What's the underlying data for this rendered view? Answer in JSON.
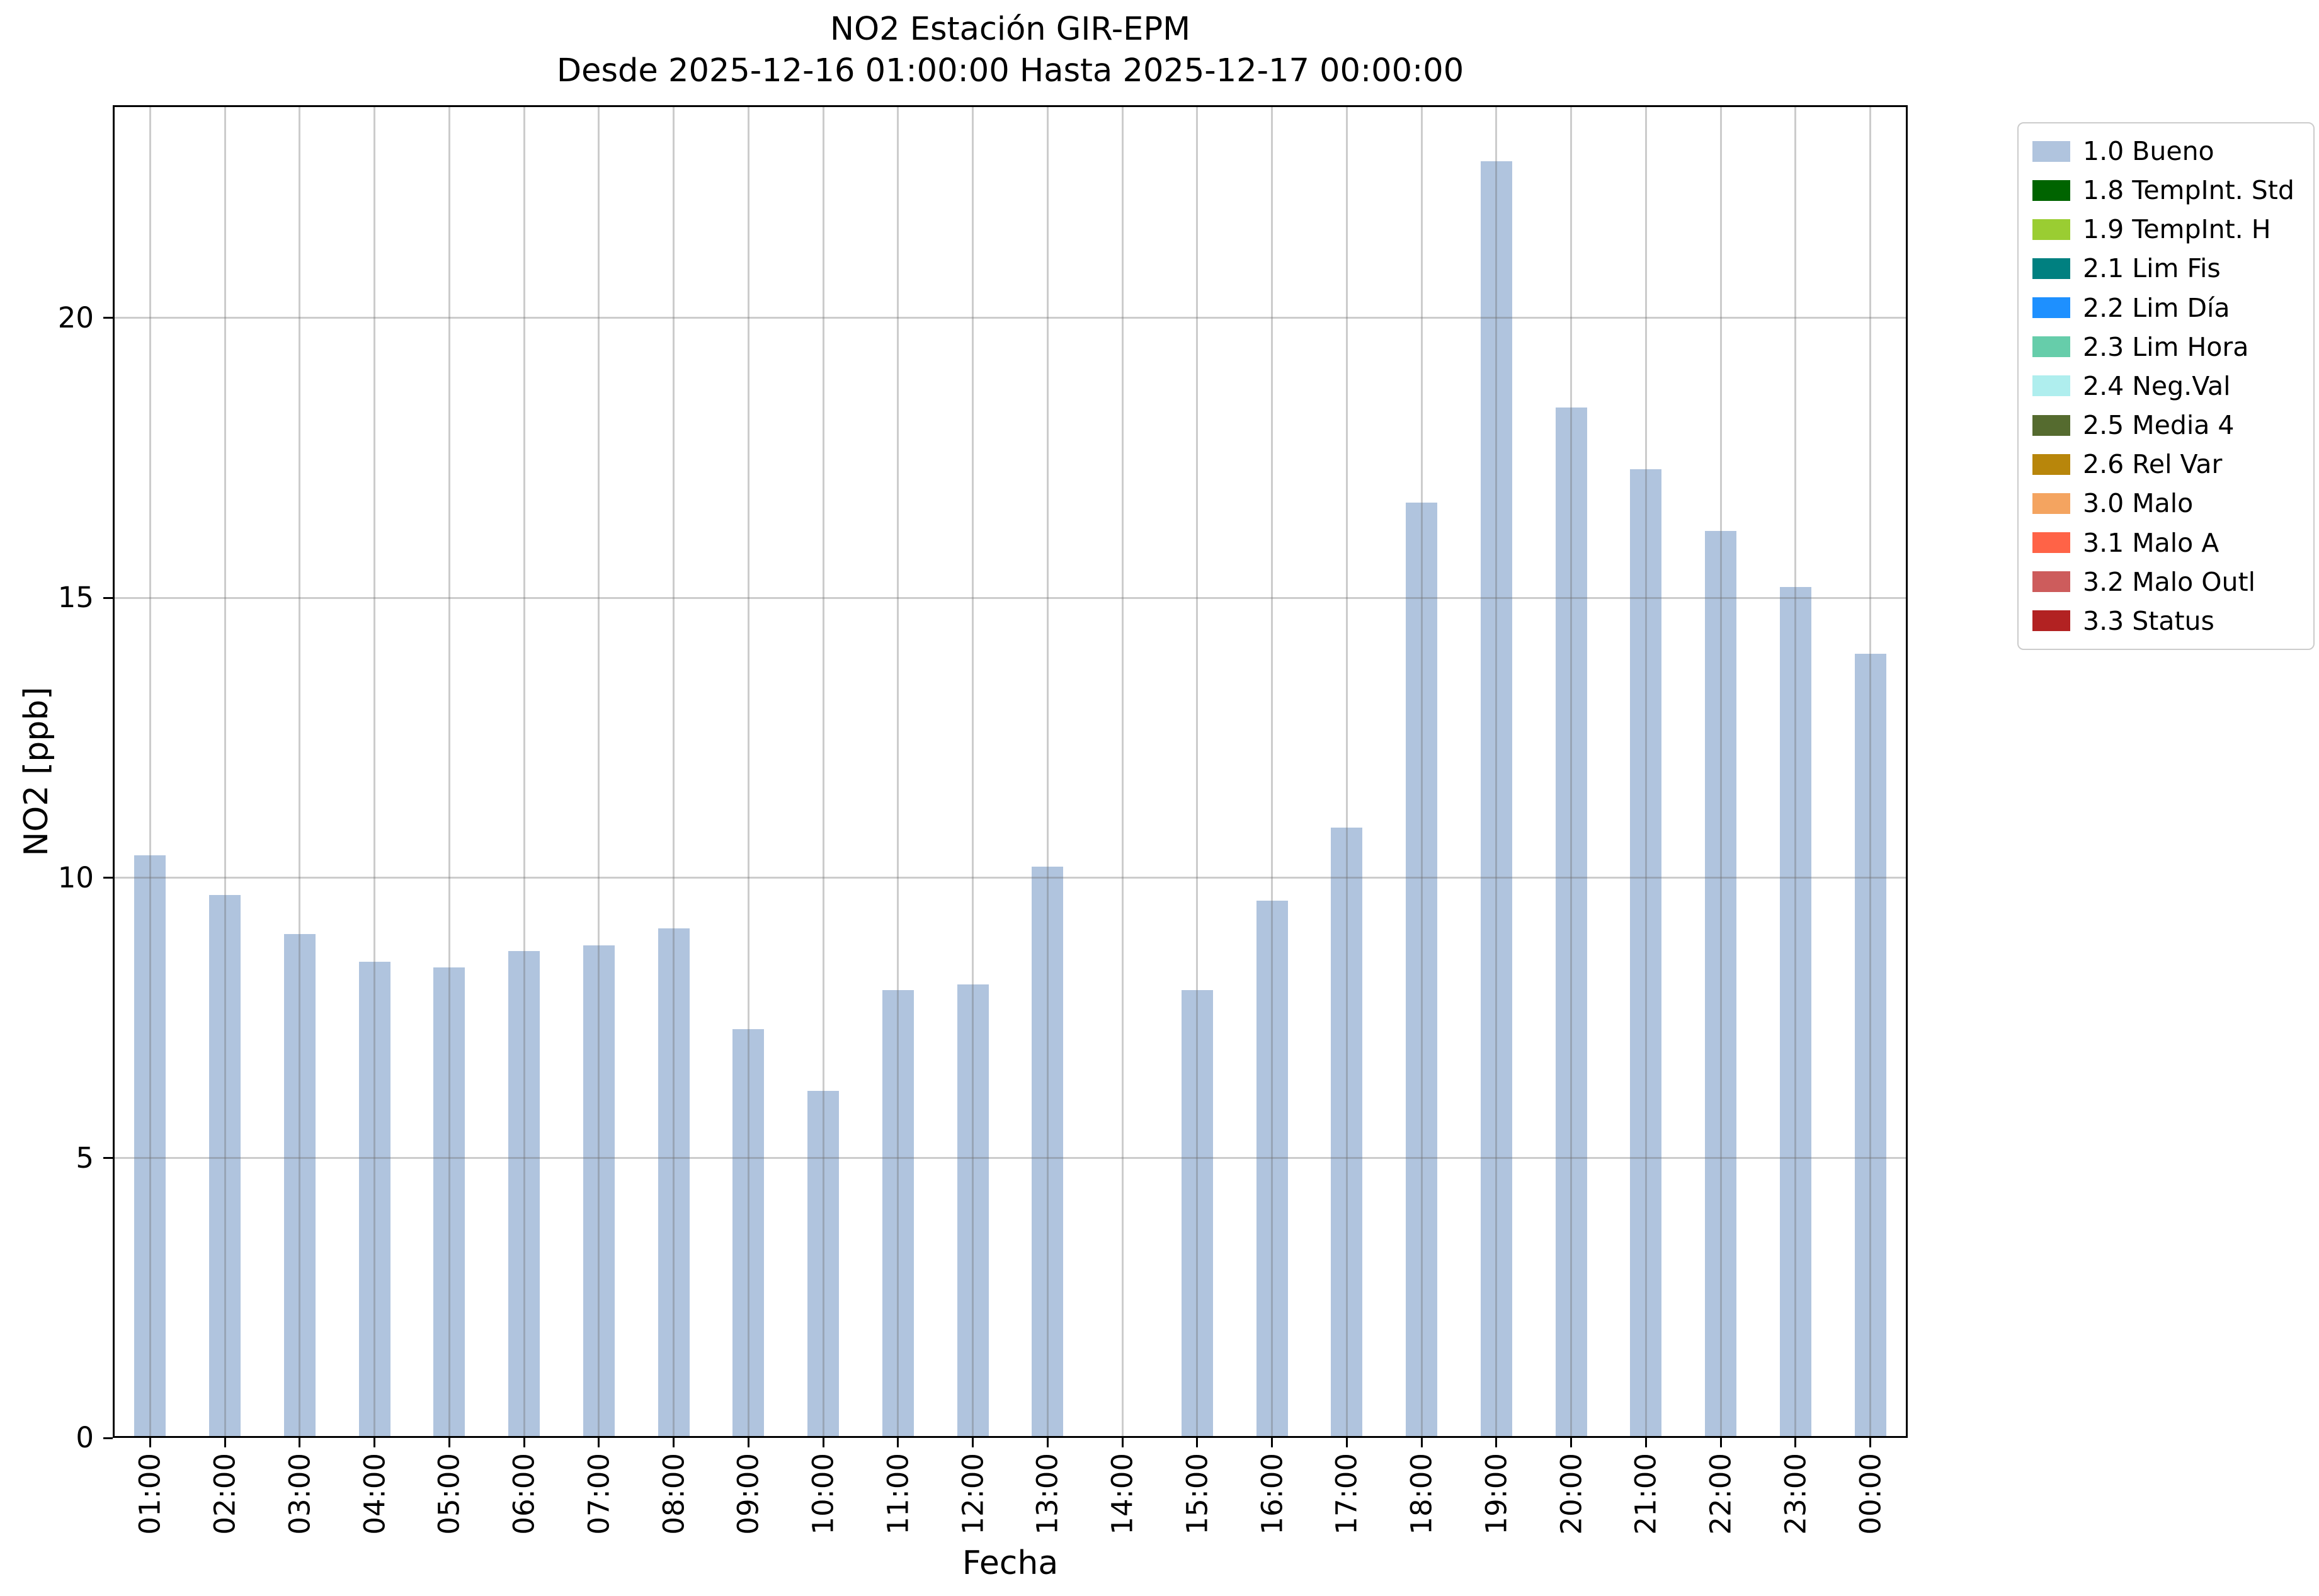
{
  "chart_data": {
    "type": "bar",
    "title": "NO2 Estación GIR-EPM",
    "subtitle": "Desde 2025-12-16 01:00:00 Hasta 2025-12-17 00:00:00",
    "xlabel": "Fecha",
    "ylabel": "NO2 [ppb]",
    "ylim": [
      0,
      23.8
    ],
    "yticks": [
      0,
      5,
      10,
      15,
      20
    ],
    "grid": true,
    "bar_color": "#b0c4de",
    "categories": [
      "01:00",
      "02:00",
      "03:00",
      "04:00",
      "05:00",
      "06:00",
      "07:00",
      "08:00",
      "09:00",
      "10:00",
      "11:00",
      "12:00",
      "13:00",
      "14:00",
      "15:00",
      "16:00",
      "17:00",
      "18:00",
      "19:00",
      "20:00",
      "21:00",
      "22:00",
      "23:00",
      "00:00"
    ],
    "values": [
      10.4,
      9.7,
      9.0,
      8.5,
      8.4,
      8.7,
      8.8,
      9.1,
      7.3,
      6.2,
      8.0,
      8.1,
      10.2,
      0,
      8.0,
      9.6,
      10.9,
      16.7,
      22.8,
      18.4,
      17.3,
      16.2,
      15.2,
      14.0
    ],
    "legend": {
      "position": "outside-upper-right",
      "items": [
        {
          "label": "1.0 Bueno",
          "color": "#b0c4de"
        },
        {
          "label": "1.8 TempInt. Std",
          "color": "#006400"
        },
        {
          "label": "1.9 TempInt. H",
          "color": "#9acd32"
        },
        {
          "label": "2.1 Lim Fis",
          "color": "#008080"
        },
        {
          "label": "2.2 Lim Día",
          "color": "#1e90ff"
        },
        {
          "label": "2.3 Lim Hora",
          "color": "#66cdaa"
        },
        {
          "label": "2.4 Neg.Val",
          "color": "#afeeee"
        },
        {
          "label": "2.5 Media 4",
          "color": "#556b2f"
        },
        {
          "label": "2.6 Rel Var",
          "color": "#b8860b"
        },
        {
          "label": "3.0 Malo",
          "color": "#f4a460"
        },
        {
          "label": "3.1 Malo A",
          "color": "#ff6347"
        },
        {
          "label": "3.2 Malo Outl",
          "color": "#cd5c5c"
        },
        {
          "label": "3.3 Status",
          "color": "#b22222"
        }
      ]
    }
  }
}
